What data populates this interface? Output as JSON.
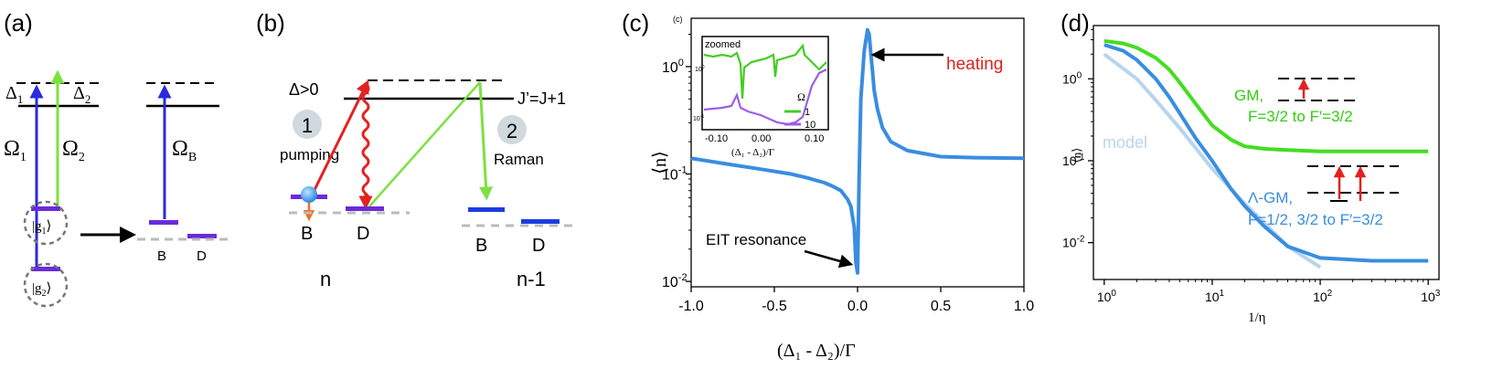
{
  "panel_a": {
    "label": "(a)",
    "delta1": "Δ",
    "delta1_sub": "1",
    "delta2": "Δ",
    "delta2_sub": "2",
    "omega1": "Ω",
    "omega1_sub": "1",
    "omega2": "Ω",
    "omega2_sub": "2",
    "omegaB": "Ω",
    "omegaB_sub": "B",
    "g1": "|g",
    "g1_sub": "1",
    "g1_end": "⟩",
    "g2": "|g",
    "g2_sub": "2",
    "g2_end": "⟩",
    "state_B": "B",
    "state_D": "D"
  },
  "panel_b": {
    "label": "(b)",
    "delta_label": "Δ>0",
    "j_label": "J’=J+1",
    "step1": "1",
    "step1_text": "pumping",
    "step2": "2",
    "step2_text": "Raman",
    "left_B": "B",
    "left_D": "D",
    "right_B": "B",
    "right_D": "D",
    "n_label": "n",
    "n1_label": "n-1"
  },
  "panel_c": {
    "label": "(c)",
    "chart_data": {
      "type": "line",
      "title": "",
      "xlabel": "(Δ₁ - Δ₂)/Γ",
      "ylabel": "⟨n⟩",
      "xlim": [
        -1.0,
        1.0
      ],
      "ylim_log10": [
        -2.05,
        0.45
      ],
      "yscale": "log",
      "x_ticks": [
        "-1.0",
        "-0.5",
        "0.0",
        "0.5",
        "1.0"
      ],
      "x_tick_values": [
        -1.0,
        -0.5,
        0.0,
        0.5,
        1.0
      ],
      "y_tick_values_log10": [
        -2,
        -1,
        0
      ],
      "y_tick_base": "10",
      "y_tick_exps": [
        "-2",
        "-1",
        "0"
      ],
      "series_color": "#3a8de0",
      "series": [
        {
          "name": "⟨n⟩",
          "x": [
            -1.0,
            -0.8,
            -0.6,
            -0.4,
            -0.3,
            -0.2,
            -0.15,
            -0.1,
            -0.06,
            -0.04,
            -0.03,
            -0.02,
            -0.01,
            0.0,
            0.01,
            0.02,
            0.04,
            0.06,
            0.07,
            0.08,
            0.09,
            0.1,
            0.12,
            0.15,
            0.2,
            0.3,
            0.5,
            0.7,
            1.0
          ],
          "y": [
            0.14,
            0.125,
            0.112,
            0.1,
            0.092,
            0.083,
            0.077,
            0.07,
            0.058,
            0.05,
            0.04,
            0.032,
            0.015,
            0.012,
            0.1,
            0.5,
            1.4,
            2.2,
            2.0,
            1.3,
            0.9,
            0.6,
            0.4,
            0.27,
            0.2,
            0.165,
            0.145,
            0.142,
            0.14
          ]
        }
      ],
      "annotations": [
        {
          "text": "heating",
          "color": "#e02020"
        },
        {
          "text": "EIT resonance",
          "color": "#000000"
        }
      ]
    },
    "inset": {
      "tag": "(c)",
      "title": "zoomed",
      "xlabel": "(Δ₁ - Δ₂)/Γ",
      "x_ticks": [
        "-0.10",
        "0.00",
        "0.10"
      ],
      "legend_title": "Ω",
      "legend": [
        {
          "label": "1",
          "color": "#44cc22"
        },
        {
          "label": "10",
          "color": "#9b5de5"
        }
      ],
      "y_tick_base": "10",
      "y_tick_exps": [
        "-1",
        "0"
      ]
    }
  },
  "panel_d": {
    "label": "(d)",
    "chart_data": {
      "type": "line",
      "xscale": "log",
      "yscale": "log",
      "xlabel": "1/η",
      "ylabel": "⟨n⟩",
      "xlim_log10": [
        -0.1,
        3.1
      ],
      "ylim_log10": [
        -2.45,
        0.65
      ],
      "x_tick_base": "10",
      "x_tick_exps": [
        "0",
        "1",
        "2",
        "3"
      ],
      "y_tick_base": "10",
      "y_tick_exps": [
        "-2",
        "-1",
        "0"
      ],
      "series": [
        {
          "name": "GM, F=3/2 to F′=3/2",
          "color": "#44dd22",
          "x": [
            1,
            1.5,
            2,
            3,
            4,
            5,
            7,
            10,
            15,
            20,
            30,
            50,
            100,
            300,
            1000
          ],
          "y": [
            2.9,
            2.7,
            2.4,
            1.8,
            1.3,
            0.9,
            0.5,
            0.27,
            0.18,
            0.15,
            0.14,
            0.135,
            0.13,
            0.13,
            0.13
          ]
        },
        {
          "name": "Λ-GM, F=1/2, 3/2 to F′=3/2",
          "color": "#3a8de0",
          "x": [
            1,
            1.5,
            2,
            3,
            4,
            5,
            7,
            10,
            15,
            20,
            30,
            50,
            100,
            300,
            1000
          ],
          "y": [
            2.6,
            2.2,
            1.7,
            1.0,
            0.6,
            0.38,
            0.19,
            0.1,
            0.045,
            0.028,
            0.016,
            0.009,
            0.0065,
            0.006,
            0.006
          ]
        },
        {
          "name": "model",
          "color": "#b8d4ee",
          "x": [
            1,
            2,
            3,
            5,
            10,
            20,
            50,
            100
          ],
          "y": [
            2.0,
            1.0,
            0.55,
            0.25,
            0.08,
            0.03,
            0.009,
            0.005
          ]
        }
      ],
      "labels": {
        "model": "model",
        "gm_line1": "GM,",
        "gm_line2": "F=3/2 to F′=3/2",
        "lgm_line1": "Λ-GM,",
        "lgm_line2": "F=1/2, 3/2 to F′=3/2"
      }
    }
  }
}
